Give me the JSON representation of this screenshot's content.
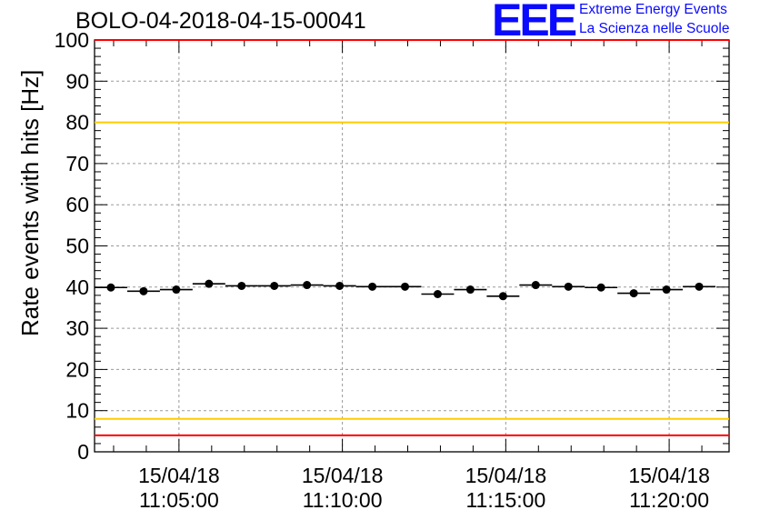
{
  "header": {
    "title": "BOLO-04-2018-04-15-00041",
    "logo_text": "EEE",
    "logo_line1": "Extreme Energy Events",
    "logo_line2": "La Scienza nelle Scuole"
  },
  "colors": {
    "red_line": "#ff0000",
    "yellow_line": "#ffcc00",
    "logo_blue": "#0a0aff",
    "grid": "#9a9a9a",
    "marker": "#000000"
  },
  "chart_data": {
    "type": "scatter",
    "title": "BOLO-04-2018-04-15-00041",
    "xlabel": "",
    "ylabel": "Rate events with hits [Hz]",
    "ylim": [
      0,
      100
    ],
    "y_ticks": [
      0,
      10,
      20,
      30,
      40,
      50,
      60,
      70,
      80,
      90,
      100
    ],
    "x_ticks": [
      {
        "date": "15/04/18",
        "time": "11:05:00"
      },
      {
        "date": "15/04/18",
        "time": "11:10:00"
      },
      {
        "date": "15/04/18",
        "time": "11:15:00"
      },
      {
        "date": "15/04/18",
        "time": "11:20:00"
      }
    ],
    "x_range": [
      "11:02:25",
      "11:21:50"
    ],
    "x_tick_values": [
      "11:05:00",
      "11:10:00",
      "11:15:00",
      "11:20:00"
    ],
    "bin_width": "00:01:00",
    "grid": true,
    "reference_lines": [
      {
        "y": 100,
        "color": "red"
      },
      {
        "y": 80,
        "color": "yellow"
      },
      {
        "y": 8,
        "color": "yellow"
      },
      {
        "y": 4,
        "color": "red"
      }
    ],
    "series": [
      {
        "x": [
          "11:02:55",
          "11:03:55",
          "11:04:55",
          "11:05:55",
          "11:06:55",
          "11:07:55",
          "11:08:55",
          "11:09:55",
          "11:10:55",
          "11:11:55",
          "11:12:55",
          "11:13:55",
          "11:14:55",
          "11:15:55",
          "11:16:55",
          "11:17:55",
          "11:18:55",
          "11:19:55",
          "11:20:55"
        ],
        "y": [
          39.9,
          39.0,
          39.4,
          40.8,
          40.3,
          40.3,
          40.5,
          40.3,
          40.1,
          40.1,
          38.3,
          39.4,
          37.8,
          40.5,
          40.1,
          39.9,
          38.5,
          39.4,
          40.1
        ]
      }
    ]
  }
}
